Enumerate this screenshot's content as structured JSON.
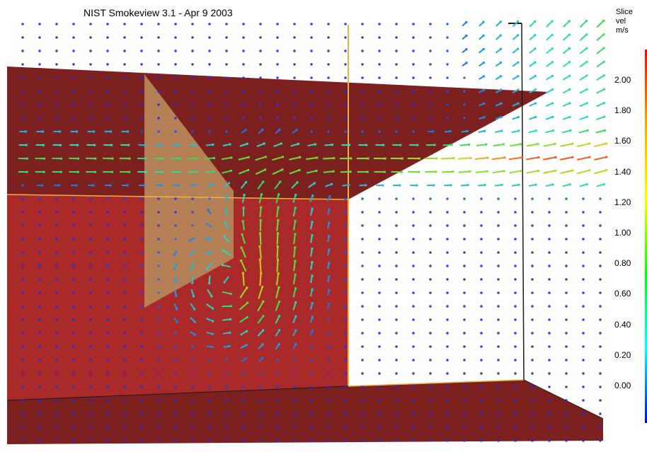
{
  "window": {
    "title": "NIST Smokeview 3.1 - Apr  9 2003"
  },
  "colorbar": {
    "label_line1": "Slice",
    "label_line2": "vel",
    "unit": "m/s",
    "ticks": [
      "2.00",
      "1.80",
      "1.60",
      "1.40",
      "1.20",
      "1.00",
      "0.80",
      "0.60",
      "0.40",
      "0.20",
      "0.00"
    ],
    "min_value": 0.0,
    "max_value": 2.0,
    "gradient_colors": [
      "#ff0000",
      "#ffa500",
      "#ffff00",
      "#00ff00",
      "#00ffff",
      "#0000ff"
    ]
  },
  "scene": {
    "colors": {
      "background": "#ffffff",
      "wall": "#aa2a2a",
      "ceiling": "#7d2020",
      "floor": "#7d2020",
      "vent": "#b58055",
      "edge": "#f0b040",
      "slow_vector": "#1e28e6"
    }
  }
}
